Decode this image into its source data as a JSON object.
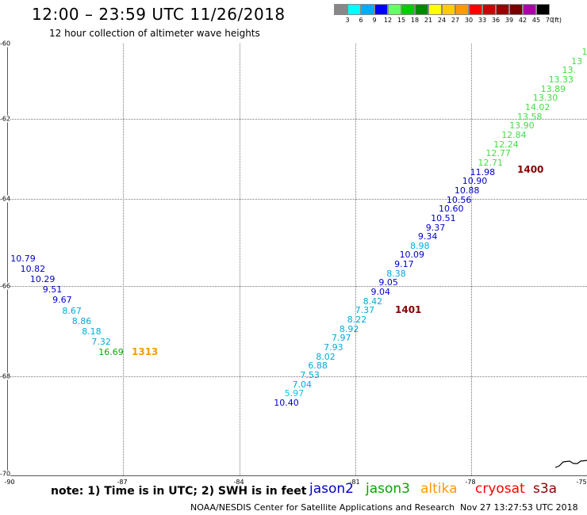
{
  "title": "12:00 – 23:59 UTC 11/26/2018",
  "subtitle": "12 hour collection of altimeter wave heights",
  "legend": {
    "colors": [
      "#888888",
      "#00ffff",
      "#00aaff",
      "#0000ff",
      "#66ff66",
      "#00cc00",
      "#008800",
      "#ffff00",
      "#ffcc00",
      "#ff9900",
      "#ff0000",
      "#cc0000",
      "#990000",
      "#770000",
      "#aa00aa",
      "#000000"
    ],
    "labels": [
      "3",
      "6",
      "9",
      "12",
      "15",
      "18",
      "21",
      "24",
      "27",
      "30",
      "33",
      "36",
      "39",
      "42",
      "45",
      "70"
    ],
    "unit": "(ft)"
  },
  "axes": {
    "lat_labels": [
      "-60",
      "-62",
      "-64",
      "-66",
      "-68",
      "-70"
    ],
    "lon_labels": [
      "-90",
      "-87",
      "-84",
      "-81",
      "-78",
      "-75"
    ]
  },
  "colors": {
    "jason2": "#0000cc",
    "jason3": "#00aa00",
    "altika": "#ff9900",
    "cryosat": "#ff0000",
    "s3a": "#880000"
  },
  "tracks": {
    "left": [
      {
        "v": "10.79",
        "c": "#0000cc"
      },
      {
        "v": "10.82",
        "c": "#0000cc"
      },
      {
        "v": "10.29",
        "c": "#0000cc"
      },
      {
        "v": "9.51",
        "c": "#0000cc"
      },
      {
        "v": "9.67",
        "c": "#0000cc"
      },
      {
        "v": "8.67",
        "c": "#00aadd"
      },
      {
        "v": "8.86",
        "c": "#00aadd"
      },
      {
        "v": "8.18",
        "c": "#00aadd"
      },
      {
        "v": "7.32",
        "c": "#00aadd"
      },
      {
        "v": "16.69",
        "c": "#00aa00"
      }
    ],
    "right": [
      {
        "v": "10.40",
        "c": "#0000cc"
      },
      {
        "v": "5.97",
        "c": "#00ccdd"
      },
      {
        "v": "7.04",
        "c": "#00aadd"
      },
      {
        "v": "7.53",
        "c": "#00aadd"
      },
      {
        "v": "6.88",
        "c": "#00aadd"
      },
      {
        "v": "8.02",
        "c": "#00aadd"
      },
      {
        "v": "7.93",
        "c": "#00aadd"
      },
      {
        "v": "7.97",
        "c": "#00aadd"
      },
      {
        "v": "8.92",
        "c": "#00aadd"
      },
      {
        "v": "8.22",
        "c": "#00aadd"
      },
      {
        "v": "7.37",
        "c": "#00aadd"
      },
      {
        "v": "8.42",
        "c": "#00aadd"
      },
      {
        "v": "9.04",
        "c": "#0000cc"
      },
      {
        "v": "9.05",
        "c": "#0000cc"
      },
      {
        "v": "8.38",
        "c": "#00aadd"
      },
      {
        "v": "9.17",
        "c": "#0000cc"
      },
      {
        "v": "10.09",
        "c": "#0000cc"
      },
      {
        "v": "8.98",
        "c": "#00aadd"
      },
      {
        "v": "9.34",
        "c": "#0000cc"
      },
      {
        "v": "9.37",
        "c": "#0000cc"
      },
      {
        "v": "10.51",
        "c": "#0000cc"
      },
      {
        "v": "10.60",
        "c": "#0000cc"
      },
      {
        "v": "10.56",
        "c": "#0000cc"
      },
      {
        "v": "10.88",
        "c": "#0000cc"
      },
      {
        "v": "10.90",
        "c": "#0000cc"
      },
      {
        "v": "11.98",
        "c": "#0000cc"
      },
      {
        "v": "12.71",
        "c": "#44dd44"
      },
      {
        "v": "12.77",
        "c": "#44dd44"
      },
      {
        "v": "12.24",
        "c": "#44dd44"
      },
      {
        "v": "12.84",
        "c": "#44dd44"
      },
      {
        "v": "13.90",
        "c": "#44dd44"
      },
      {
        "v": "13.58",
        "c": "#44dd44"
      },
      {
        "v": "14.02",
        "c": "#44dd44"
      },
      {
        "v": "13.30",
        "c": "#44dd44"
      },
      {
        "v": "13.89",
        "c": "#44dd44"
      },
      {
        "v": "13.33",
        "c": "#44dd44"
      },
      {
        "v": "13.",
        "c": "#44dd44"
      },
      {
        "v": "13",
        "c": "#44dd44"
      },
      {
        "v": "1",
        "c": "#44dd44"
      }
    ]
  },
  "pass_times": [
    {
      "label": "1313",
      "c": "#ff9900"
    },
    {
      "label": "1401",
      "c": "#880000"
    },
    {
      "label": "1400",
      "c": "#880000"
    }
  ],
  "footer": {
    "note": "note: 1) Time is in UTC; 2) SWH is in feet",
    "satellites": [
      "jason2",
      "jason3",
      "altika",
      "cryosat",
      "s3a"
    ],
    "credit": "NOAA/NESDIS Center for Satellite Applications and Research",
    "timestamp": "Nov 27 13:27:53 UTC 2018"
  }
}
